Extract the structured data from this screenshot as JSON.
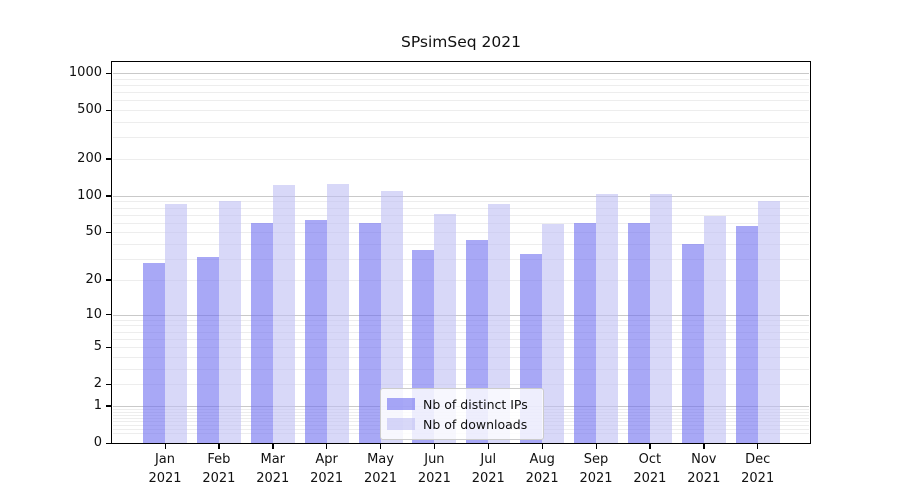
{
  "title": "SPsimSeq 2021",
  "chart_data": {
    "type": "bar",
    "title": "SPsimSeq 2021",
    "scale": "log1p",
    "grid": "on",
    "categories": [
      "Jan",
      "Feb",
      "Mar",
      "Apr",
      "May",
      "Jun",
      "Jul",
      "Aug",
      "Sep",
      "Oct",
      "Nov",
      "Dec"
    ],
    "year": "2021",
    "series": [
      {
        "name": "Nb of distinct IPs",
        "color": "rgba(110,110,240,0.6)",
        "values": [
          28,
          31,
          60,
          63,
          60,
          36,
          43,
          33,
          60,
          60,
          40,
          56
        ]
      },
      {
        "name": "Nb of downloads",
        "color": "rgba(190,190,243,0.6)",
        "values": [
          85,
          91,
          123,
          124,
          109,
          71,
          86,
          59,
          104,
          104,
          68,
          90
        ]
      }
    ],
    "yticks": [
      0,
      1,
      2,
      5,
      10,
      20,
      50,
      100,
      200,
      500,
      1000
    ],
    "ylim": [
      0,
      1230
    ],
    "xlabel": "",
    "ylabel": "",
    "legend_position": "lower-center"
  },
  "colors": {
    "grid_major": "#c9c9c9",
    "grid_minor": "#ededed",
    "axis": "#000000",
    "text": "#111111",
    "legend_border": "#cccccc"
  }
}
